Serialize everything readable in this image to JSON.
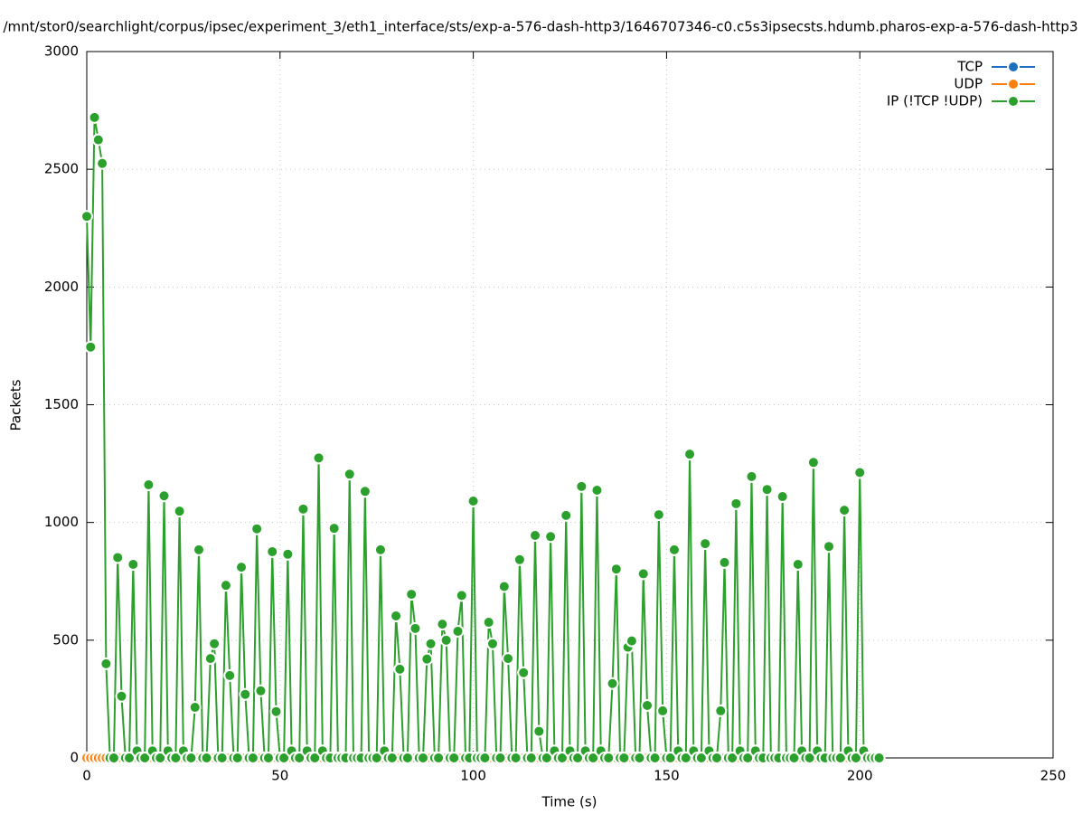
{
  "chart_data": {
    "type": "line",
    "title": "/mnt/stor0/searchlight/corpus/ipsec/experiment_3/eth1_interface/sts/exp-a-576-dash-http3/1646707346-c0.c5s3ipsecsts.hdumb.pharos-exp-a-576-dash-http3",
    "x_label": "Time (s)",
    "y_label": "Packets",
    "xlim": [
      0,
      250
    ],
    "xticks": [
      0,
      50,
      100,
      150,
      200,
      250
    ],
    "ylim": [
      0,
      3000
    ],
    "yticks": [
      0,
      500,
      1000,
      1500,
      2000,
      2500,
      3000
    ],
    "grid": true,
    "legend": "top-right",
    "x": [
      0,
      1,
      2,
      3,
      4,
      5,
      6,
      7,
      8,
      9,
      10,
      11,
      12,
      13,
      14,
      15,
      16,
      17,
      18,
      19,
      20,
      21,
      22,
      23,
      24,
      25,
      26,
      27,
      28,
      29,
      30,
      31,
      32,
      33,
      34,
      35,
      36,
      37,
      38,
      39,
      40,
      41,
      42,
      43,
      44,
      45,
      46,
      47,
      48,
      49,
      50,
      51,
      52,
      53,
      54,
      55,
      56,
      57,
      58,
      59,
      60,
      61,
      62,
      63,
      64,
      65,
      66,
      67,
      68,
      69,
      70,
      71,
      72,
      73,
      74,
      75,
      76,
      77,
      78,
      79,
      80,
      81,
      82,
      83,
      84,
      85,
      86,
      87,
      88,
      89,
      90,
      91,
      92,
      93,
      94,
      95,
      96,
      97,
      98,
      99,
      100,
      101,
      102,
      103,
      104,
      105,
      106,
      107,
      108,
      109,
      110,
      111,
      112,
      113,
      114,
      115,
      116,
      117,
      118,
      119,
      120,
      121,
      122,
      123,
      124,
      125,
      126,
      127,
      128,
      129,
      130,
      131,
      132,
      133,
      134,
      135,
      136,
      137,
      138,
      139,
      140,
      141,
      142,
      143,
      144,
      145,
      146,
      147,
      148,
      149,
      150,
      151,
      152,
      153,
      154,
      155,
      156,
      157,
      158,
      159,
      160,
      161,
      162,
      163,
      164,
      165,
      166,
      167,
      168,
      169,
      170,
      171,
      172,
      173,
      174,
      175,
      176,
      177,
      178,
      179,
      180,
      181,
      182,
      183,
      184,
      185,
      186,
      187,
      188,
      189,
      190,
      191,
      192,
      193,
      194,
      195,
      196,
      197,
      198,
      199,
      200,
      201,
      202,
      203,
      204,
      205
    ],
    "series": [
      {
        "name": "TCP",
        "color": "#1f6fbf",
        "values": [
          0,
          0,
          0,
          0,
          0,
          0,
          0,
          0,
          0,
          0,
          0,
          0,
          0,
          0,
          0,
          0,
          0,
          0,
          0,
          0,
          0,
          0,
          0,
          0,
          0,
          0,
          0,
          0,
          0,
          0,
          0,
          0,
          0,
          0,
          0,
          0,
          0,
          0,
          0,
          0,
          0,
          0,
          0,
          0,
          0,
          0,
          0,
          0,
          0,
          0,
          0,
          0,
          0,
          0,
          0,
          0,
          0,
          0,
          0,
          0,
          0,
          0,
          0,
          0,
          0,
          0,
          0,
          0,
          0,
          0,
          0,
          0,
          0,
          0,
          0,
          0,
          0,
          0,
          0,
          0,
          0,
          0,
          0,
          0,
          0,
          0,
          0,
          0,
          0,
          0,
          0,
          0,
          0,
          0,
          0,
          0,
          0,
          0,
          0,
          0,
          0,
          0,
          0,
          0,
          0,
          0,
          0,
          0,
          0,
          0,
          0,
          0,
          0,
          0,
          0,
          0,
          0,
          0,
          0,
          0,
          0,
          0,
          0,
          0,
          0,
          0,
          0,
          0,
          0,
          0,
          0,
          0,
          0,
          0,
          0,
          0,
          0,
          0,
          0,
          0,
          0,
          0,
          0,
          0,
          0,
          0,
          0,
          0,
          0,
          0,
          0,
          0,
          0,
          0,
          0,
          0,
          0,
          0,
          0,
          0,
          0,
          0,
          0,
          0,
          0,
          0,
          0,
          0,
          0,
          0,
          0,
          0,
          0,
          0,
          0,
          0,
          0,
          0,
          0,
          0,
          0,
          0,
          0,
          0,
          0,
          0,
          0,
          0,
          0,
          0,
          0,
          0,
          0,
          0,
          0,
          0,
          0,
          0,
          0,
          0,
          0,
          0,
          0,
          0,
          0,
          0
        ]
      },
      {
        "name": "UDP",
        "color": "#ff7f0e",
        "values": [
          0,
          0,
          0,
          0,
          0,
          0,
          0,
          0,
          0,
          0,
          0,
          0,
          0,
          0,
          0,
          0,
          0,
          0,
          0,
          0,
          0,
          0,
          0,
          0,
          0,
          0,
          0,
          0,
          0,
          0,
          0,
          0,
          0,
          0,
          0,
          0,
          0,
          0,
          0,
          0,
          0,
          0,
          0,
          0,
          0,
          0,
          0,
          0,
          0,
          0,
          0,
          0,
          0,
          0,
          0,
          0,
          0,
          0,
          0,
          0,
          0,
          0,
          0,
          0,
          0,
          0,
          0,
          0,
          0,
          0,
          0,
          0,
          0,
          0,
          0,
          0,
          0,
          0,
          0,
          0,
          0,
          0,
          0,
          0,
          0,
          0,
          0,
          0,
          0,
          0,
          0,
          0,
          0,
          0,
          0,
          0,
          0,
          0,
          0,
          0,
          0,
          0,
          0,
          0,
          0,
          0,
          0,
          0,
          0,
          0,
          0,
          0,
          0,
          0,
          0,
          0,
          0,
          0,
          0,
          0,
          0,
          0,
          0,
          0,
          0,
          0,
          0,
          0,
          0,
          0,
          0,
          0,
          0,
          0,
          0,
          0,
          0,
          0,
          0,
          0,
          0,
          0,
          0,
          0,
          0,
          0,
          0,
          0,
          0,
          0,
          0,
          0,
          0,
          0,
          0,
          0,
          0,
          0,
          0,
          0,
          0,
          0,
          0,
          0,
          0,
          0,
          0,
          0,
          0,
          0,
          0,
          0,
          0,
          0,
          0,
          0,
          0,
          0,
          0,
          0,
          0,
          0,
          0,
          0,
          0,
          0,
          0,
          0,
          0,
          0,
          0,
          0,
          0,
          0,
          0,
          0,
          0,
          0,
          0,
          0,
          0,
          0,
          0,
          0,
          0,
          0
        ]
      },
      {
        "name": "IP (!TCP  !UDP)",
        "color": "#2ca02c",
        "values": [
          2300,
          1745,
          2720,
          2625,
          2525,
          400,
          0,
          0,
          851,
          262,
          0,
          0,
          822,
          30,
          0,
          0,
          1160,
          30,
          0,
          0,
          1113,
          30,
          0,
          0,
          1048,
          30,
          0,
          0,
          215,
          884,
          0,
          0,
          422,
          485,
          0,
          0,
          733,
          350,
          0,
          0,
          810,
          270,
          0,
          0,
          973,
          285,
          0,
          0,
          876,
          197,
          0,
          0,
          865,
          30,
          0,
          0,
          1057,
          30,
          0,
          0,
          1274,
          30,
          0,
          0,
          975,
          0,
          0,
          0,
          1205,
          0,
          0,
          0,
          1132,
          0,
          0,
          0,
          884,
          30,
          0,
          0,
          603,
          377,
          0,
          0,
          695,
          550,
          0,
          0,
          420,
          485,
          0,
          0,
          568,
          500,
          0,
          0,
          538,
          690,
          0,
          0,
          1091,
          0,
          0,
          0,
          576,
          485,
          0,
          0,
          728,
          422,
          0,
          0,
          842,
          362,
          0,
          0,
          945,
          113,
          0,
          0,
          940,
          30,
          0,
          0,
          1030,
          30,
          0,
          0,
          1153,
          30,
          0,
          0,
          1137,
          30,
          0,
          0,
          316,
          802,
          0,
          0,
          470,
          497,
          0,
          0,
          782,
          223,
          0,
          0,
          1033,
          200,
          0,
          0,
          884,
          30,
          0,
          0,
          1290,
          30,
          0,
          0,
          910,
          30,
          0,
          0,
          200,
          830,
          0,
          0,
          1080,
          30,
          0,
          0,
          1195,
          30,
          0,
          0,
          1140,
          0,
          0,
          0,
          1110,
          0,
          0,
          0,
          822,
          30,
          0,
          0,
          1255,
          30,
          0,
          0,
          898,
          0,
          0,
          0,
          1052,
          30,
          0,
          0,
          1212,
          30,
          0,
          0,
          0,
          0
        ]
      }
    ]
  }
}
